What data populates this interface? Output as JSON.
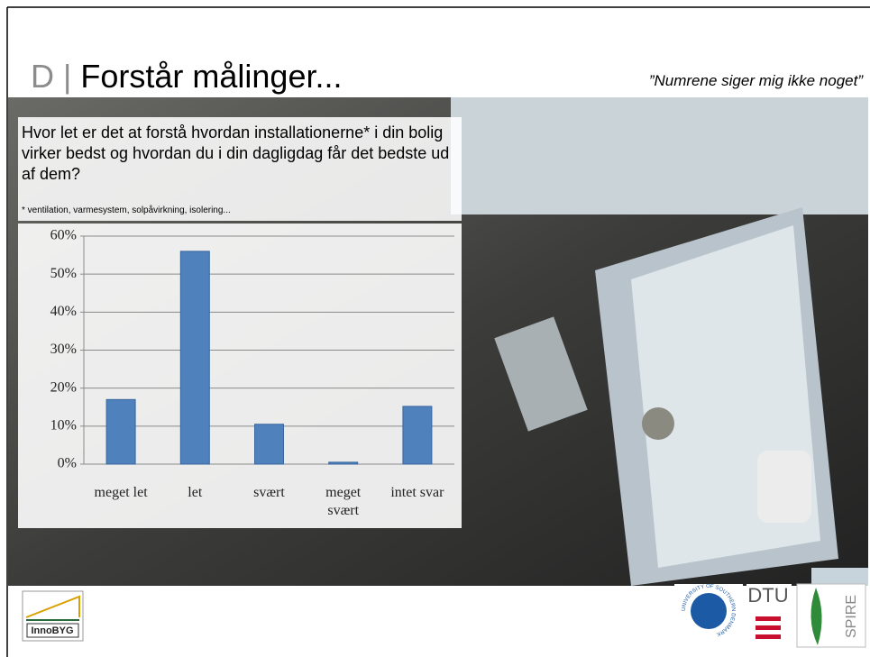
{
  "header": {
    "letter": "D",
    "separator": "|",
    "title": "Forstår målinger...",
    "quote": "”Numrene siger mig ikke noget”"
  },
  "question": "Hvor let er det at forstå hvordan installationerne* i din bolig virker bedst og hvordan du i din dagligdag får det bedste ud af dem?",
  "footnote": "* ventilation, varmesystem, solpåvirkning, isolering...",
  "chart_data": {
    "type": "bar",
    "categories": [
      "meget let",
      "let",
      "svært",
      "meget svært",
      "intet svar"
    ],
    "values": [
      17,
      56,
      10.5,
      0.5,
      15.2
    ],
    "color": "#4f81bd",
    "ylim": [
      0,
      60
    ],
    "yticks": [
      {
        "value": 0,
        "label": "0%"
      },
      {
        "value": 10,
        "label": "10%"
      },
      {
        "value": 20,
        "label": "20%"
      },
      {
        "value": 30,
        "label": "30%"
      },
      {
        "value": 40,
        "label": "40%"
      },
      {
        "value": 50,
        "label": "50%"
      },
      {
        "value": 60,
        "label": "60%"
      }
    ],
    "grid": true
  },
  "logos": {
    "innobyg": "InnoBYG",
    "sdu": "UNIVERSITY OF SOUTHERN DENMARK",
    "dtu": "DTU",
    "spire": "SPIRE"
  }
}
